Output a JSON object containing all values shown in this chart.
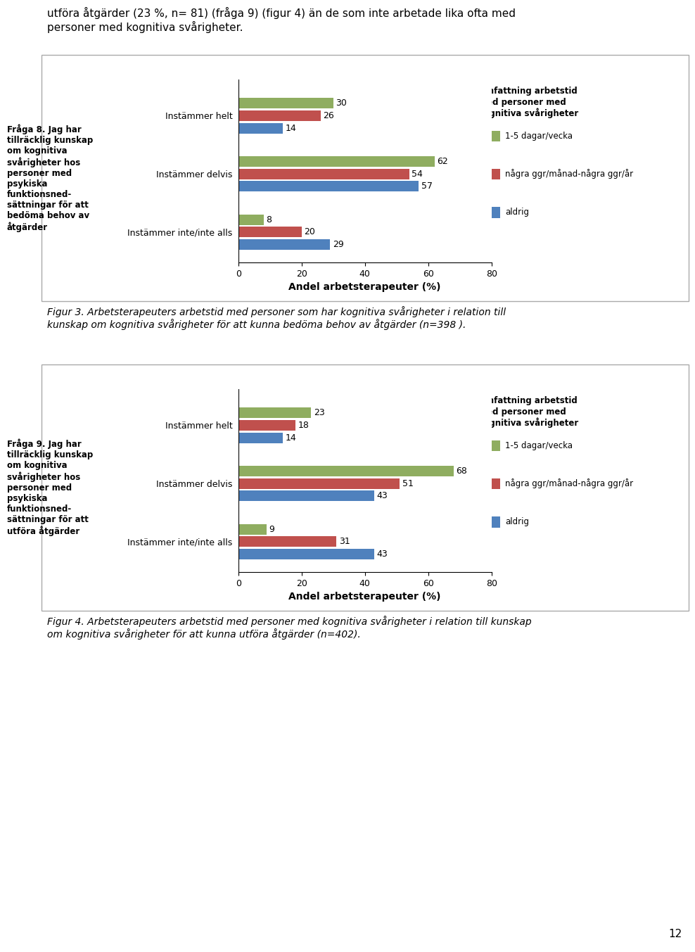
{
  "header_text": "utföra åtgärder (23 %, n= 81) (fråga 9) (figur 4) än de som inte arbetade lika ofta med\npersoner med kognitiva svårigheter.",
  "chart1": {
    "categories": [
      "Instämmer helt",
      "Instämmer delvis",
      "Instämmer inte/inte alls"
    ],
    "green_values": [
      30,
      62,
      8
    ],
    "red_values": [
      26,
      54,
      20
    ],
    "blue_values": [
      14,
      57,
      29
    ],
    "xlabel": "Andel arbetsterapeuter (%)",
    "xlim": [
      0,
      80
    ],
    "xticks": [
      0,
      20,
      40,
      60,
      80
    ],
    "question_label": "Fråga 8. Jag har\ntillräcklig kunskap\nom kognitiva\nsvårigheter hos\npersoner med\npsykiska\nfunktionsned-\nsättningar för att\nbedöma behov av\nåtgärder",
    "legend_title": "Omfattning arbetstid\nmed personer med\nkognitiva svårigheter",
    "legend_items": [
      "1-5 dagar/vecka",
      "några ggr/månad-några ggr/år",
      "aldrig"
    ],
    "caption": "Figur 3. Arbetsterapeuters arbetstid med personer som har kognitiva svårigheter i relation till\nkunskap om kognitiva svårigheter för att kunna bedöma behov av åtgärder (n=398 )."
  },
  "chart2": {
    "categories": [
      "Instämmer helt",
      "Instämmer delvis",
      "Instämmer inte/inte alls"
    ],
    "green_values": [
      23,
      68,
      9
    ],
    "red_values": [
      18,
      51,
      31
    ],
    "blue_values": [
      14,
      43,
      43
    ],
    "xlabel": "Andel arbetsterapeuter (%)",
    "xlim": [
      0,
      80
    ],
    "xticks": [
      0,
      20,
      40,
      60,
      80
    ],
    "question_label": "Fråga 9. Jag har\ntillräcklig kunskap\nom kognitiva\nsvårigheter hos\npersoner med\npsykiska\nfunktionsned-\nsättningar för att\nutföra åtgärder",
    "legend_title": "Omfattning arbetstid\nmed personer med\nkognitiva svårigheter",
    "legend_items": [
      "1-5 dagar/vecka",
      "några ggr/månad-några ggr/år",
      "aldrig"
    ],
    "caption": "Figur 4. Arbetsterapeuters arbetstid med personer med kognitiva svårigheter i relation till kunskap\nom kognitiva svårigheter för att kunna utföra åtgärder (n=402)."
  },
  "page_number": "12",
  "green_color": "#8fad60",
  "red_color": "#c0504d",
  "blue_color": "#4f81bd"
}
